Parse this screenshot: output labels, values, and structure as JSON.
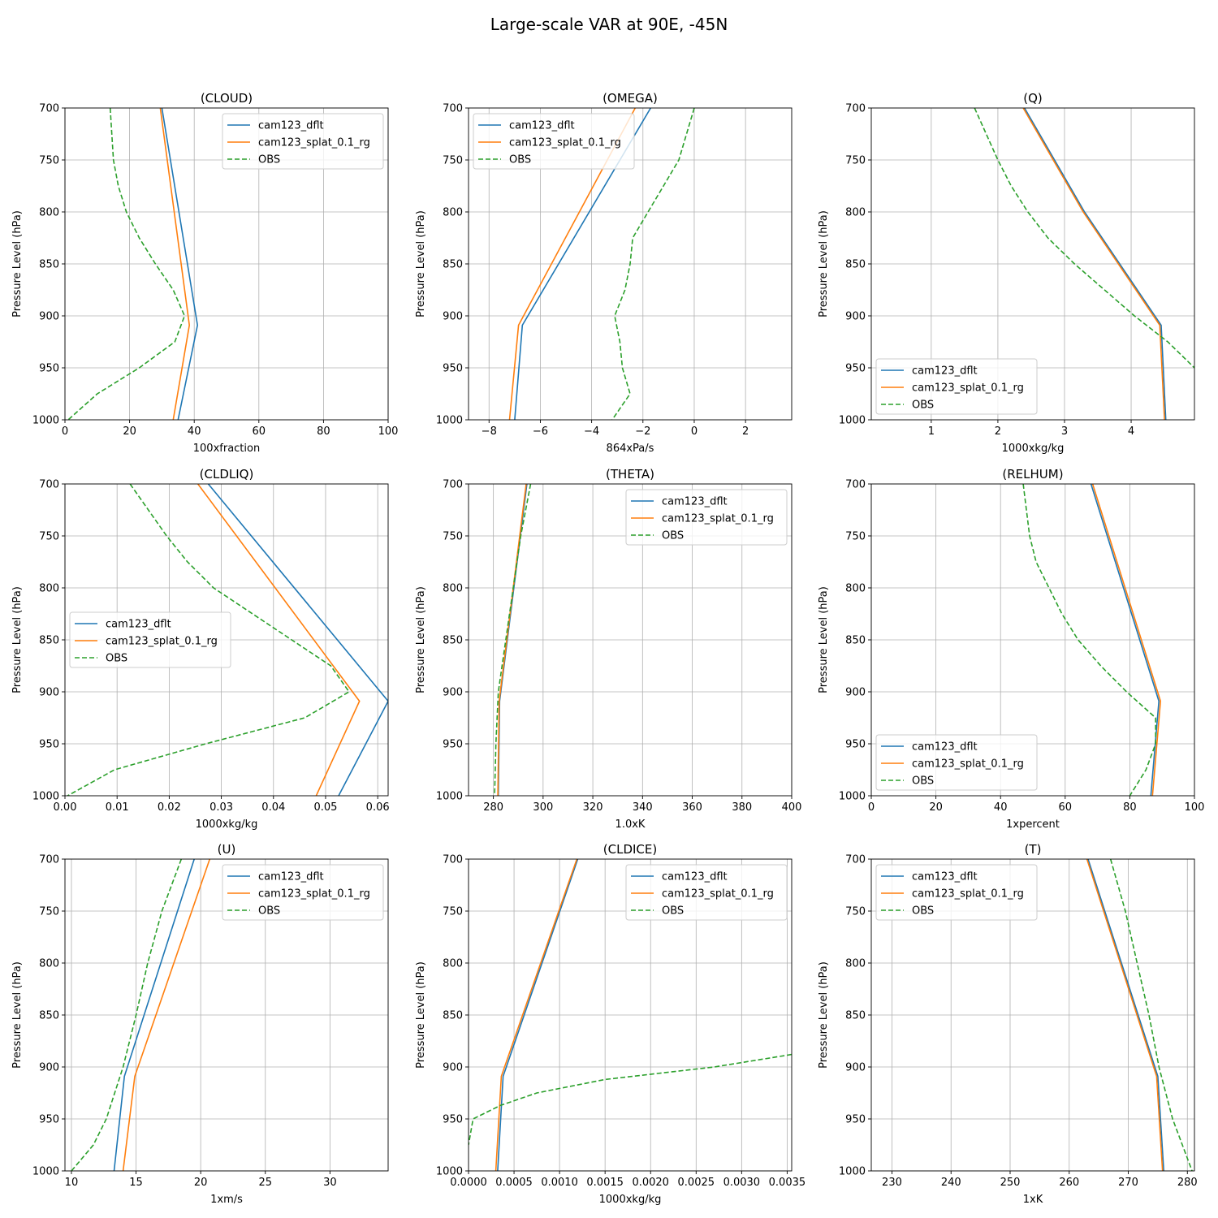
{
  "figure": {
    "title": "Large-scale VAR at 90E, -45N"
  },
  "colors": {
    "cam123_dflt": "#1f77b4",
    "cam123_splat_0.1_rg": "#ff7f0e",
    "OBS": "#2ca02c"
  },
  "chart_data": [
    {
      "type": "line",
      "title": "(CLOUD)",
      "xlabel": "100xfraction",
      "ylabel": "Pressure Level (hPa)",
      "xlim": [
        0,
        100
      ],
      "ylim": [
        1000,
        700
      ],
      "xticks": [
        0,
        20,
        40,
        60,
        80,
        100
      ],
      "xtick_labels": [
        "0",
        "20",
        "40",
        "60",
        "80",
        "100"
      ],
      "yticks": [
        700,
        750,
        800,
        850,
        900,
        950,
        1000
      ],
      "ytick_labels": [
        "700",
        "750",
        "800",
        "850",
        "900",
        "950",
        "1000"
      ],
      "grid": true,
      "legend": "upper right",
      "series": [
        {
          "name": "cam123_dflt",
          "style": "solid",
          "p": [
            700,
            909,
            1000
          ],
          "x": [
            30,
            41,
            35
          ]
        },
        {
          "name": "cam123_splat_0.1_rg",
          "style": "solid",
          "p": [
            700,
            909,
            1000
          ],
          "x": [
            29.5,
            38.5,
            33.5
          ]
        },
        {
          "name": "OBS",
          "style": "dashed",
          "p": [
            700,
            750,
            775,
            800,
            825,
            850,
            875,
            900,
            925,
            950,
            975,
            1000
          ],
          "x": [
            14,
            15,
            16.5,
            19,
            23,
            28,
            33.5,
            37,
            34,
            23,
            10,
            1
          ]
        }
      ]
    },
    {
      "type": "line",
      "title": "(OMEGA)",
      "xlabel": "864xPa/s",
      "ylabel": "Pressure Level (hPa)",
      "xlim": [
        -8.8,
        3.8
      ],
      "ylim": [
        1000,
        700
      ],
      "xticks": [
        -8,
        -6,
        -4,
        -2,
        0,
        2
      ],
      "xtick_labels": [
        "−8",
        "−6",
        "−4",
        "−2",
        "0",
        "2"
      ],
      "yticks": [
        700,
        750,
        800,
        850,
        900,
        950,
        1000
      ],
      "ytick_labels": [
        "700",
        "750",
        "800",
        "850",
        "900",
        "950",
        "1000"
      ],
      "grid": true,
      "legend": "upper left",
      "series": [
        {
          "name": "cam123_dflt",
          "style": "solid",
          "p": [
            700,
            909,
            1000
          ],
          "x": [
            -1.7,
            -6.7,
            -7.0
          ]
        },
        {
          "name": "cam123_splat_0.1_rg",
          "style": "solid",
          "p": [
            700,
            909,
            1000
          ],
          "x": [
            -2.3,
            -6.85,
            -7.2
          ]
        },
        {
          "name": "OBS",
          "style": "dashed",
          "p": [
            700,
            750,
            775,
            800,
            825,
            850,
            875,
            900,
            925,
            950,
            975,
            1000
          ],
          "x": [
            0.0,
            -0.6,
            -1.2,
            -1.8,
            -2.4,
            -2.5,
            -2.7,
            -3.1,
            -2.9,
            -2.8,
            -2.5,
            -3.2
          ]
        }
      ]
    },
    {
      "type": "line",
      "title": "(Q)",
      "xlabel": "1000xkg/kg",
      "ylabel": "Pressure Level (hPa)",
      "xlim": [
        0.1,
        4.95
      ],
      "ylim": [
        1000,
        700
      ],
      "xticks": [
        1,
        2,
        3,
        4
      ],
      "xtick_labels": [
        "1",
        "2",
        "3",
        "4"
      ],
      "yticks": [
        700,
        750,
        800,
        850,
        900,
        950,
        1000
      ],
      "ytick_labels": [
        "700",
        "750",
        "800",
        "850",
        "900",
        "950",
        "1000"
      ],
      "grid": true,
      "legend": "lower left",
      "series": [
        {
          "name": "cam123_dflt",
          "style": "solid",
          "p": [
            700,
            800,
            909,
            1000
          ],
          "x": [
            2.4,
            3.3,
            4.45,
            4.52
          ]
        },
        {
          "name": "cam123_splat_0.1_rg",
          "style": "solid",
          "p": [
            700,
            800,
            909,
            1000
          ],
          "x": [
            2.38,
            3.28,
            4.43,
            4.5
          ]
        },
        {
          "name": "OBS",
          "style": "dashed",
          "p": [
            700,
            750,
            775,
            800,
            825,
            850,
            875,
            900,
            925,
            950
          ],
          "x": [
            1.65,
            2.0,
            2.2,
            2.45,
            2.75,
            3.15,
            3.6,
            4.05,
            4.55,
            4.95
          ]
        }
      ]
    },
    {
      "type": "line",
      "title": "(CLDLIQ)",
      "xlabel": "1000xkg/kg",
      "ylabel": "Pressure Level (hPa)",
      "xlim": [
        0,
        0.062
      ],
      "ylim": [
        1000,
        700
      ],
      "xticks": [
        0.0,
        0.01,
        0.02,
        0.03,
        0.04,
        0.05,
        0.06
      ],
      "xtick_labels": [
        "0.00",
        "0.01",
        "0.02",
        "0.03",
        "0.04",
        "0.05",
        "0.06"
      ],
      "yticks": [
        700,
        750,
        800,
        850,
        900,
        950,
        1000
      ],
      "ytick_labels": [
        "700",
        "750",
        "800",
        "850",
        "900",
        "950",
        "1000"
      ],
      "grid": true,
      "legend": "center left",
      "series": [
        {
          "name": "cam123_dflt",
          "style": "solid",
          "p": [
            700,
            909,
            1000
          ],
          "x": [
            0.0275,
            0.062,
            0.0525
          ]
        },
        {
          "name": "cam123_splat_0.1_rg",
          "style": "solid",
          "p": [
            700,
            909,
            1000
          ],
          "x": [
            0.0255,
            0.0565,
            0.0482
          ]
        },
        {
          "name": "OBS",
          "style": "dashed",
          "p": [
            700,
            750,
            775,
            800,
            825,
            850,
            875,
            900,
            925,
            950,
            975,
            1000
          ],
          "x": [
            0.0125,
            0.0195,
            0.0235,
            0.0285,
            0.036,
            0.0435,
            0.051,
            0.0545,
            0.046,
            0.027,
            0.0095,
            0.0005
          ]
        }
      ]
    },
    {
      "type": "line",
      "title": "(THETA)",
      "xlabel": "1.0xK",
      "ylabel": "Pressure Level (hPa)",
      "xlim": [
        270,
        400
      ],
      "ylim": [
        1000,
        700
      ],
      "xticks": [
        280,
        300,
        320,
        340,
        360,
        380,
        400
      ],
      "xtick_labels": [
        "280",
        "300",
        "320",
        "340",
        "360",
        "380",
        "400"
      ],
      "yticks": [
        700,
        750,
        800,
        850,
        900,
        950,
        1000
      ],
      "ytick_labels": [
        "700",
        "750",
        "800",
        "850",
        "900",
        "950",
        "1000"
      ],
      "grid": true,
      "legend": "upper right",
      "series": [
        {
          "name": "cam123_dflt",
          "style": "solid",
          "p": [
            700,
            909,
            1000
          ],
          "x": [
            293.5,
            282.5,
            282
          ]
        },
        {
          "name": "cam123_splat_0.1_rg",
          "style": "solid",
          "p": [
            700,
            909,
            1000
          ],
          "x": [
            293.2,
            282.3,
            281.8
          ]
        },
        {
          "name": "OBS",
          "style": "dashed",
          "p": [
            700,
            750,
            800,
            850,
            900,
            950,
            1000
          ],
          "x": [
            295,
            291,
            288,
            285,
            282,
            281,
            280.5
          ]
        }
      ]
    },
    {
      "type": "line",
      "title": "(RELHUM)",
      "xlabel": "1xpercent",
      "ylabel": "Pressure Level (hPa)",
      "xlim": [
        0,
        100
      ],
      "ylim": [
        1000,
        700
      ],
      "xticks": [
        0,
        20,
        40,
        60,
        80,
        100
      ],
      "xtick_labels": [
        "0",
        "20",
        "40",
        "60",
        "80",
        "100"
      ],
      "yticks": [
        700,
        750,
        800,
        850,
        900,
        950,
        1000
      ],
      "ytick_labels": [
        "700",
        "750",
        "800",
        "850",
        "900",
        "950",
        "1000"
      ],
      "grid": true,
      "legend": "lower left",
      "series": [
        {
          "name": "cam123_dflt",
          "style": "solid",
          "p": [
            700,
            909,
            1000
          ],
          "x": [
            68,
            89,
            86.5
          ]
        },
        {
          "name": "cam123_splat_0.1_rg",
          "style": "solid",
          "p": [
            700,
            909,
            1000
          ],
          "x": [
            68.5,
            89.5,
            87
          ]
        },
        {
          "name": "OBS",
          "style": "dashed",
          "p": [
            700,
            750,
            775,
            800,
            825,
            850,
            875,
            900,
            925,
            950,
            975,
            1000
          ],
          "x": [
            47,
            49,
            51,
            55,
            59,
            64,
            71,
            79,
            88,
            88,
            85,
            80
          ]
        }
      ]
    },
    {
      "type": "line",
      "title": "(U)",
      "xlabel": "1xm/s",
      "ylabel": "Pressure Level (hPa)",
      "xlim": [
        9.5,
        34.5
      ],
      "ylim": [
        1000,
        700
      ],
      "xticks": [
        10,
        15,
        20,
        25,
        30
      ],
      "xtick_labels": [
        "10",
        "15",
        "20",
        "25",
        "30"
      ],
      "yticks": [
        700,
        750,
        800,
        850,
        900,
        950,
        1000
      ],
      "ytick_labels": [
        "700",
        "750",
        "800",
        "850",
        "900",
        "950",
        "1000"
      ],
      "grid": true,
      "legend": "upper right",
      "series": [
        {
          "name": "cam123_dflt",
          "style": "solid",
          "p": [
            700,
            909,
            1000
          ],
          "x": [
            19.5,
            14.1,
            13.3
          ]
        },
        {
          "name": "cam123_splat_0.1_rg",
          "style": "solid",
          "p": [
            700,
            909,
            1000
          ],
          "x": [
            20.7,
            14.9,
            14.0
          ]
        },
        {
          "name": "OBS",
          "style": "dashed",
          "p": [
            700,
            750,
            800,
            850,
            900,
            950,
            975,
            1000
          ],
          "x": [
            18.5,
            17.0,
            15.9,
            15.0,
            14.0,
            12.7,
            11.7,
            10.0
          ]
        }
      ]
    },
    {
      "type": "line",
      "title": "(CLDICE)",
      "xlabel": "1000xkg/kg",
      "ylabel": "Pressure Level (hPa)",
      "xlim": [
        0,
        0.00355
      ],
      "ylim": [
        1000,
        700
      ],
      "xticks": [
        0.0,
        0.0005,
        0.001,
        0.0015,
        0.002,
        0.0025,
        0.003,
        0.0035
      ],
      "xtick_labels": [
        "0.0000",
        "0.0005",
        "0.0010",
        "0.0015",
        "0.0020",
        "0.0025",
        "0.0030",
        "0.0035"
      ],
      "yticks": [
        700,
        750,
        800,
        850,
        900,
        950,
        1000
      ],
      "ytick_labels": [
        "700",
        "750",
        "800",
        "850",
        "900",
        "950",
        "1000"
      ],
      "grid": true,
      "legend": "upper right",
      "series": [
        {
          "name": "cam123_dflt",
          "style": "solid",
          "p": [
            700,
            909,
            1000
          ],
          "x": [
            0.0012,
            0.00038,
            0.00032
          ]
        },
        {
          "name": "cam123_splat_0.1_rg",
          "style": "solid",
          "p": [
            700,
            909,
            1000
          ],
          "x": [
            0.00119,
            0.00036,
            0.0003
          ]
        },
        {
          "name": "OBS",
          "style": "dashed",
          "p": [
            888,
            900,
            912,
            925,
            937,
            950,
            975
          ],
          "x": [
            0.00355,
            0.0027,
            0.0015,
            0.00075,
            0.00035,
            5e-05,
            0.0
          ]
        }
      ]
    },
    {
      "type": "line",
      "title": "(T)",
      "xlabel": "1xK",
      "ylabel": "Pressure Level (hPa)",
      "xlim": [
        226.5,
        281.2
      ],
      "ylim": [
        1000,
        700
      ],
      "xticks": [
        230,
        240,
        250,
        260,
        270,
        280
      ],
      "xtick_labels": [
        "230",
        "240",
        "250",
        "260",
        "270",
        "280"
      ],
      "yticks": [
        700,
        750,
        800,
        850,
        900,
        950,
        1000
      ],
      "ytick_labels": [
        "700",
        "750",
        "800",
        "850",
        "900",
        "950",
        "1000"
      ],
      "grid": true,
      "legend": "upper left",
      "series": [
        {
          "name": "cam123_dflt",
          "style": "solid",
          "p": [
            700,
            909,
            1000
          ],
          "x": [
            263.2,
            275,
            276
          ]
        },
        {
          "name": "cam123_splat_0.1_rg",
          "style": "solid",
          "p": [
            700,
            909,
            1000
          ],
          "x": [
            263.0,
            274.8,
            275.8
          ]
        },
        {
          "name": "OBS",
          "style": "dashed",
          "p": [
            700,
            750,
            800,
            850,
            900,
            950,
            1000
          ],
          "x": [
            267,
            269.5,
            271.5,
            273.5,
            275.2,
            277.5,
            280.8
          ]
        }
      ]
    }
  ]
}
